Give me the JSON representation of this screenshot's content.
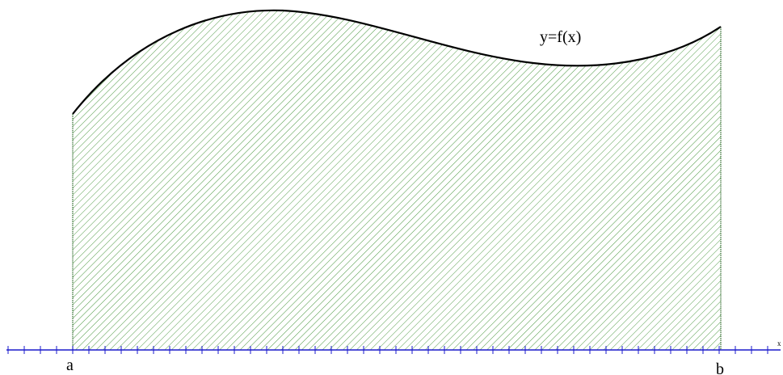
{
  "figure": {
    "curve_label": "y=f(x)",
    "lower_bound_label": "a",
    "upper_bound_label": "b",
    "axis_label": "x"
  },
  "colors": {
    "axis": "#1a1acc",
    "curve": "#000000",
    "hatch": "#4f9a45",
    "region_edge": "#2e6b2b",
    "background": "#ffffff"
  }
}
